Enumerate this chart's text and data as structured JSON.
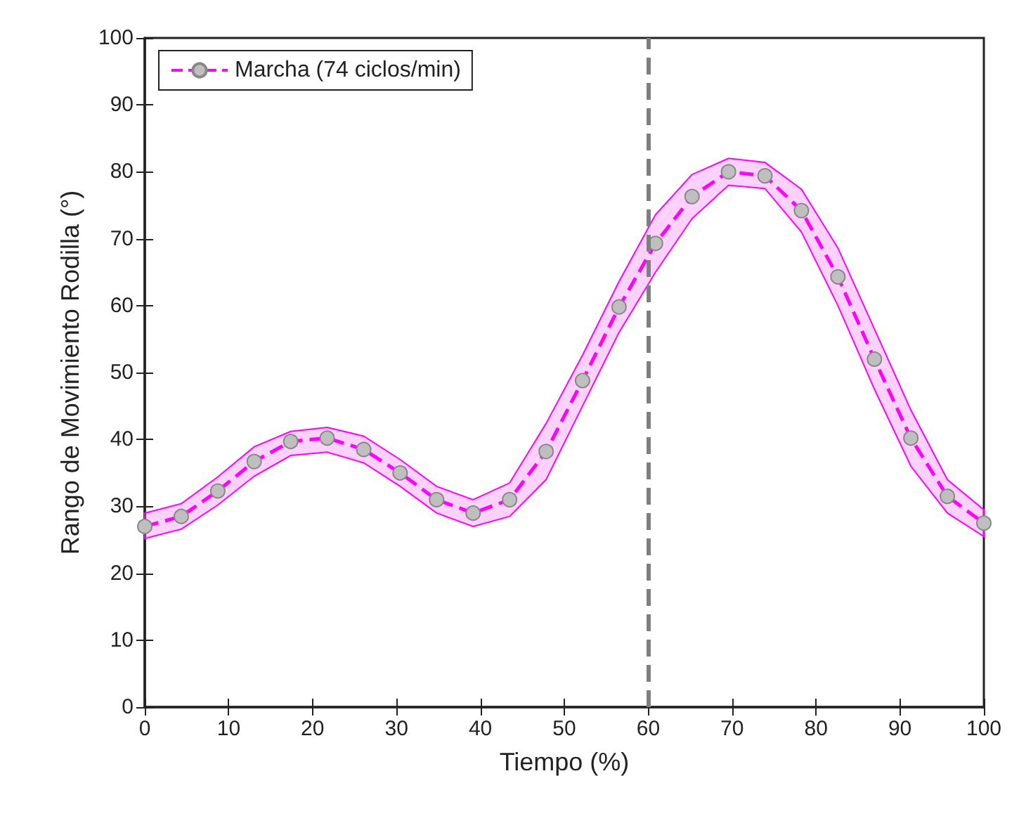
{
  "chart_data": {
    "type": "line",
    "xlabel": "Tiempo (%)",
    "ylabel": "Rango de Movimiento Rodilla (°)",
    "x": [
      0,
      4.35,
      8.7,
      13.04,
      17.39,
      21.74,
      26.09,
      30.43,
      34.78,
      39.13,
      43.48,
      47.83,
      52.17,
      56.52,
      60.87,
      65.22,
      69.57,
      73.91,
      78.26,
      82.61,
      86.96,
      91.3,
      95.65,
      100
    ],
    "series": [
      {
        "name": "Marcha (74 ciclos/min)",
        "color": "#ff00ff",
        "values": [
          27,
          28.5,
          32.3,
          36.7,
          39.7,
          40.2,
          38.5,
          35,
          31,
          29,
          31,
          38.2,
          48.8,
          59.8,
          69.3,
          76.3,
          80,
          79.4,
          74.2,
          64.3,
          52,
          40.2,
          31.5,
          27.5
        ],
        "lower": [
          25.2,
          26.6,
          30.2,
          34.5,
          37.6,
          38.1,
          36.5,
          33,
          29,
          27,
          28.5,
          34,
          45,
          56,
          65,
          73,
          78,
          77.5,
          71,
          60,
          47.5,
          36,
          29,
          25.5
        ],
        "upper": [
          29,
          30.4,
          34.4,
          38.9,
          41.2,
          41.8,
          40.5,
          37,
          33,
          31,
          33.5,
          42.4,
          52.6,
          63.6,
          73.6,
          79.6,
          82,
          81.4,
          77.4,
          68.6,
          56.5,
          44.4,
          34,
          29.5
        ]
      }
    ],
    "xlim": [
      0,
      100
    ],
    "xticks": [
      0,
      10,
      20,
      30,
      40,
      50,
      60,
      70,
      80,
      90,
      100
    ],
    "ylim": [
      0,
      100
    ],
    "yticks": [
      0,
      10,
      20,
      30,
      40,
      50,
      60,
      70,
      80,
      90,
      100
    ],
    "ref_lines": [
      {
        "axis": "x",
        "value": 60,
        "color": "#7f7f7f",
        "line_style": "dashed"
      }
    ],
    "grid": false,
    "legend": "top left",
    "marker": "circle",
    "line_style": "dashed"
  }
}
